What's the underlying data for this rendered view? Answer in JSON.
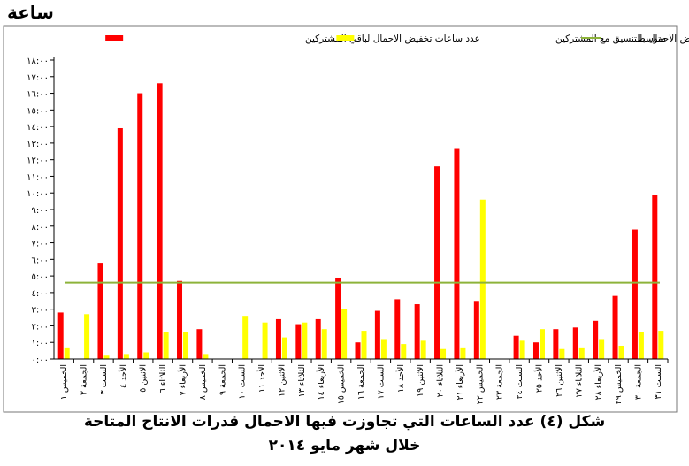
{
  "chart_data": {
    "type": "bar",
    "unit_label": "ساعة",
    "ylim": [
      0,
      18
    ],
    "yticks": [
      "٠:٠٠",
      "١:٠٠",
      "٢:٠٠",
      "٣:٠٠",
      "٤:٠٠",
      "٥:٠٠",
      "٦:٠٠",
      "٧:٠٠",
      "٨:٠٠",
      "٩:٠٠",
      "١٠:٠٠",
      "١١:٠٠",
      "١٢:٠٠",
      "١٣:٠٠",
      "١٤:٠٠",
      "١٥:٠٠",
      "١٦:٠٠",
      "١٧:٠٠",
      "١٨:٠٠"
    ],
    "categories": [
      "الخميس ١",
      "الجمعة ٢",
      "السبت ٣",
      "الأحد ٤",
      "الاثنين ٥",
      "الثلاثاء ٦",
      "الأربعاء ٧",
      "الخميس ٨",
      "الجمعة ٩",
      "السبت ١٠",
      "الأحد ١١",
      "الاثنين ١٢",
      "الثلاثاء ١٣",
      "الأربعاء ١٤",
      "الخميس ١٥",
      "الجمعة ١٦",
      "السبت ١٧",
      "الأحد ١٨",
      "الاثنين ١٩",
      "الثلاثاء ٢٠",
      "الأربعاء ٢١",
      "الخميس ٢٢",
      "الجمعة ٢٣",
      "السبت ٢٤",
      "الأحد ٢٥",
      "الاثنين ٢٦",
      "الثلاثاء ٢٧",
      "الأربعاء ٢٨",
      "الخميس ٢٩",
      "الجمعة ٣٠",
      "السبت ٣١"
    ],
    "series": [
      {
        "name": "عدد ساعات تخفيض الاحمال لباقي المشتركين",
        "color": "#ff0000",
        "values": [
          2.8,
          0,
          5.8,
          13.9,
          16.0,
          16.6,
          4.7,
          1.8,
          0,
          0,
          0,
          2.4,
          2.1,
          2.4,
          4.9,
          1.0,
          2.9,
          3.6,
          3.3,
          11.6,
          12.7,
          3.5,
          0,
          1.4,
          1.0,
          1.8,
          1.9,
          2.3,
          3.8,
          7.8,
          9.9
        ]
      },
      {
        "name": "عدد ساعات خفض الاحمال بالتنسيق مع المشتركين",
        "color": "#ffff00",
        "values": [
          0.7,
          2.7,
          0.2,
          0.3,
          0.4,
          1.6,
          1.6,
          0.3,
          0,
          2.6,
          2.2,
          1.3,
          2.2,
          1.8,
          3.0,
          1.7,
          1.2,
          0.9,
          1.1,
          0.6,
          0.7,
          9.6,
          0,
          1.1,
          1.8,
          0.6,
          0.7,
          1.2,
          0.8,
          1.6,
          1.7
        ]
      }
    ],
    "average": {
      "name": "متوسط",
      "color": "#8db33a",
      "value": 4.6
    },
    "caption_line1": "شكل (٤) عدد الساعات التي تجاوزت فيها الاحمال قدرات الانتاج المتاحة",
    "caption_line2": "خلال شهر مايو ٢٠١٤"
  }
}
